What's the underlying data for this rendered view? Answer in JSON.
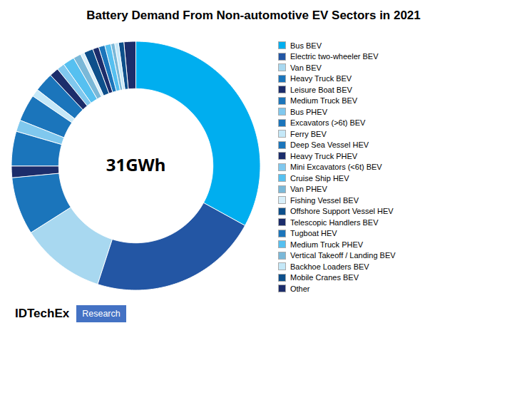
{
  "chart_data": {
    "type": "pie",
    "title": "Battery Demand From Non-automotive EV Sectors in 2021",
    "center_label": "31GWh",
    "annotations": [
      "IDTechEx",
      "Research"
    ],
    "categories": [
      "Bus BEV",
      "Electric two-wheeler BEV",
      "Van BEV",
      "Heavy Truck BEV",
      "Leisure Boat BEV",
      "Medium Truck BEV",
      "Bus PHEV",
      "Excavators (>6t) BEV",
      "Ferry BEV",
      "Deep Sea Vessel HEV",
      "Heavy Truck PHEV",
      "Mini Excavators (<6t) BEV",
      "Cruise Ship HEV",
      "Van PHEV",
      "Fishing Vessel BEV",
      "Offshore Support Vessel HEV",
      "Telescopic Handlers BEV",
      "Tugboat HEV",
      "Medium Truck PHEV",
      "Vertical Takeoff / Landing BEV",
      "Backhoe Loaders BEV",
      "Mobile Cranes BEV",
      "Other"
    ],
    "values": [
      33.0,
      22.0,
      11.0,
      7.5,
      1.5,
      4.5,
      1.5,
      3.5,
      1.0,
      2.5,
      1.2,
      1.0,
      1.5,
      1.0,
      0.5,
      1.2,
      0.8,
      0.8,
      0.8,
      0.5,
      0.5,
      0.7,
      1.5
    ],
    "colors": [
      "#00AEEF",
      "#2356A4",
      "#A8D8F0",
      "#1B75BB",
      "#1C2D6B",
      "#1B75BB",
      "#80C8EE",
      "#1B75BB",
      "#C5E8F8",
      "#1B75BB",
      "#1C2D6B",
      "#80C8EE",
      "#56C0F0",
      "#7AB8D8",
      "#D8EFFA",
      "#0D4F8B",
      "#1C2D6B",
      "#1B75BB",
      "#56C0F0",
      "#7AB8D8",
      "#C5E8F8",
      "#0D4F8B",
      "#1C2D6B"
    ],
    "legend": "right"
  }
}
